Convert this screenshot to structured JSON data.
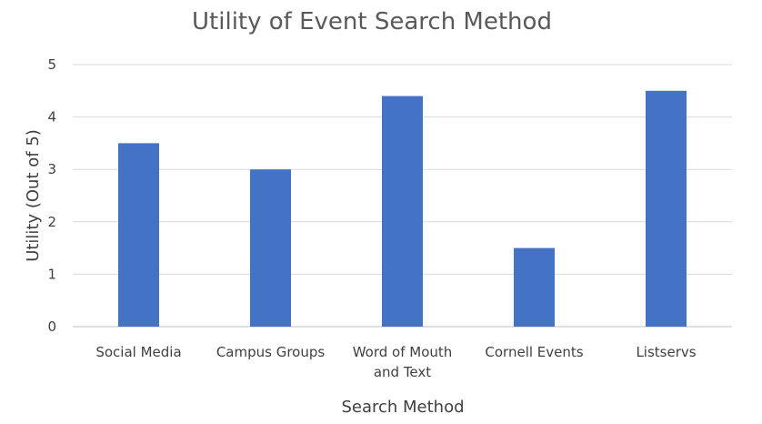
{
  "chart_data": {
    "type": "bar",
    "title": "Utility of Event Search Method",
    "xlabel": "Search Method",
    "ylabel": "Utility (Out of 5)",
    "categories": [
      [
        "Social Media"
      ],
      [
        "Campus Groups"
      ],
      [
        "Word of Mouth",
        "and Text"
      ],
      [
        "Cornell Events"
      ],
      [
        "Listservs"
      ]
    ],
    "values": [
      3.5,
      3.0,
      4.4,
      1.5,
      4.5
    ],
    "ylim": [
      0,
      5
    ],
    "yticks": [
      "0",
      "1",
      "2",
      "3",
      "4",
      "5"
    ],
    "grid": true,
    "legend": "none",
    "bar_color": "#4472c4"
  }
}
